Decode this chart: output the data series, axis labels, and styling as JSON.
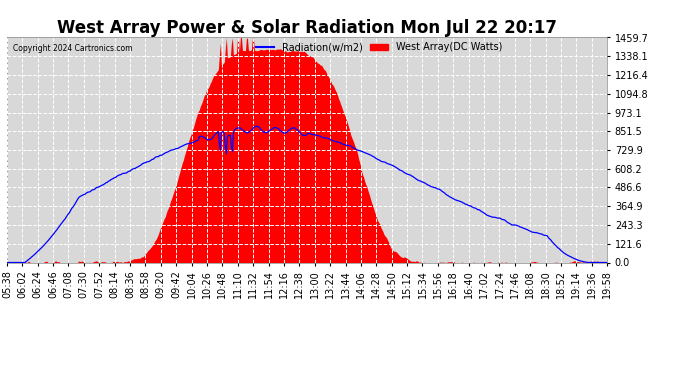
{
  "title": "West Array Power & Solar Radiation Mon Jul 22 20:17",
  "copyright": "Copyright 2024 Cartronics.com",
  "legend_radiation": "Radiation(w/m2)",
  "legend_west": "West Array(DC Watts)",
  "yticks": [
    0.0,
    121.6,
    243.3,
    364.9,
    486.6,
    608.2,
    729.9,
    851.5,
    973.1,
    1094.8,
    1216.4,
    1338.1,
    1459.7
  ],
  "ymax": 1459.7,
  "ymin": 0.0,
  "bg_color": "#ffffff",
  "plot_bg_color": "#d8d8d8",
  "grid_color": "#ffffff",
  "radiation_color": "#0000ff",
  "west_array_color": "#ff0000",
  "title_fontsize": 12,
  "tick_fontsize": 7,
  "xtick_labels": [
    "05:38",
    "06:02",
    "06:24",
    "06:46",
    "07:08",
    "07:30",
    "07:52",
    "08:14",
    "08:36",
    "08:58",
    "09:20",
    "09:42",
    "10:04",
    "10:26",
    "10:48",
    "11:10",
    "11:32",
    "11:54",
    "12:16",
    "12:38",
    "13:00",
    "13:22",
    "13:44",
    "14:06",
    "14:28",
    "14:50",
    "15:12",
    "15:34",
    "15:56",
    "16:18",
    "16:40",
    "17:02",
    "17:24",
    "17:46",
    "18:08",
    "18:30",
    "18:52",
    "19:14",
    "19:36",
    "19:58"
  ],
  "num_points": 600
}
